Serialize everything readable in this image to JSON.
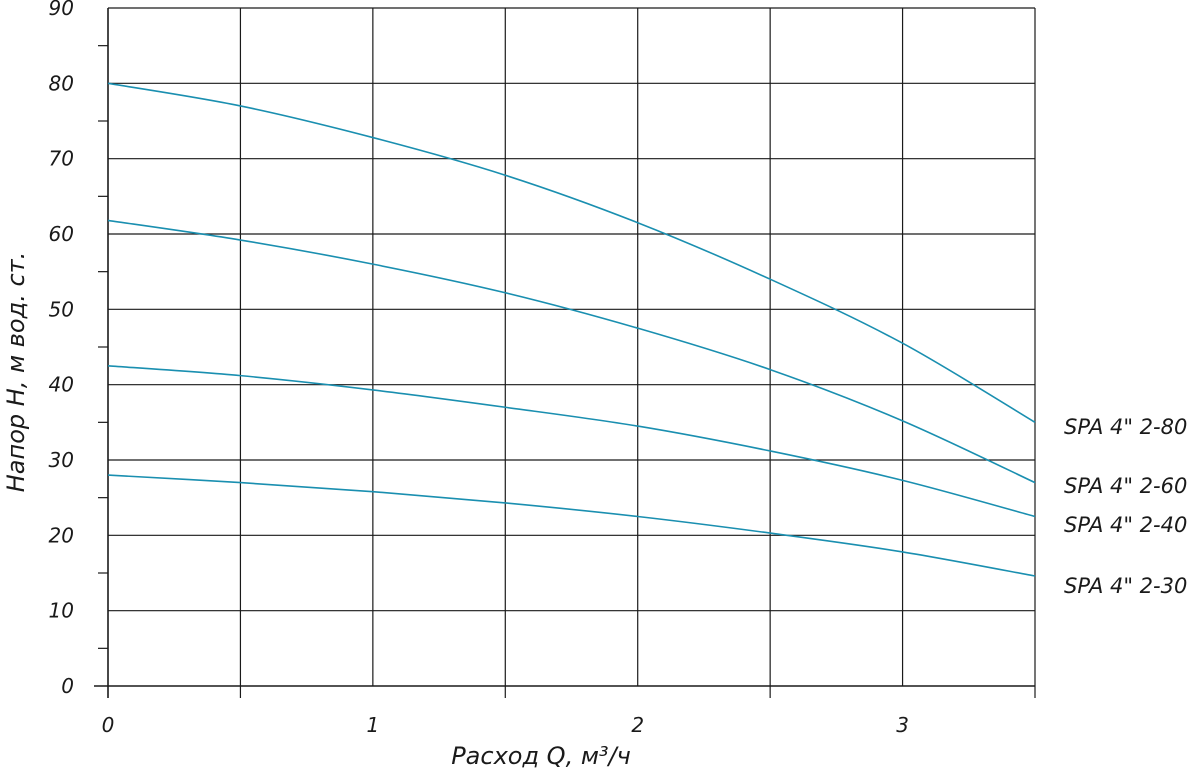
{
  "chart_data": {
    "type": "line",
    "title": "",
    "xlabel": "Расход Q, м³/ч",
    "ylabel": "Напор Н, м вод. ст.",
    "xlim": [
      0,
      3.5
    ],
    "ylim": [
      0,
      90
    ],
    "x_ticks": [
      0,
      1,
      2,
      3
    ],
    "y_ticks": [
      0,
      10,
      20,
      30,
      40,
      50,
      60,
      70,
      80,
      90
    ],
    "grid": true,
    "line_color": "#1a8fb0",
    "series": [
      {
        "name": "SPA 4\" 2-80",
        "x": [
          0,
          0.5,
          1,
          1.5,
          2,
          2.5,
          3,
          3.5
        ],
        "y": [
          80,
          77,
          72.8,
          67.8,
          61.5,
          54,
          45.5,
          35
        ]
      },
      {
        "name": "SPA 4\" 2-60",
        "x": [
          0,
          0.5,
          1,
          1.5,
          2,
          2.5,
          3,
          3.5
        ],
        "y": [
          61.8,
          59.2,
          56,
          52.2,
          47.5,
          42,
          35.2,
          27
        ]
      },
      {
        "name": "SPA 4\" 2-40",
        "x": [
          0,
          0.5,
          1,
          1.5,
          2,
          2.5,
          3,
          3.5
        ],
        "y": [
          42.5,
          41.2,
          39.3,
          37,
          34.5,
          31.2,
          27.3,
          22.5
        ]
      },
      {
        "name": "SPA 4\" 2-30",
        "x": [
          0,
          0.5,
          1,
          1.5,
          2,
          2.5,
          3,
          3.5
        ],
        "y": [
          28,
          27,
          25.8,
          24.3,
          22.5,
          20.3,
          17.8,
          14.6
        ]
      }
    ]
  }
}
